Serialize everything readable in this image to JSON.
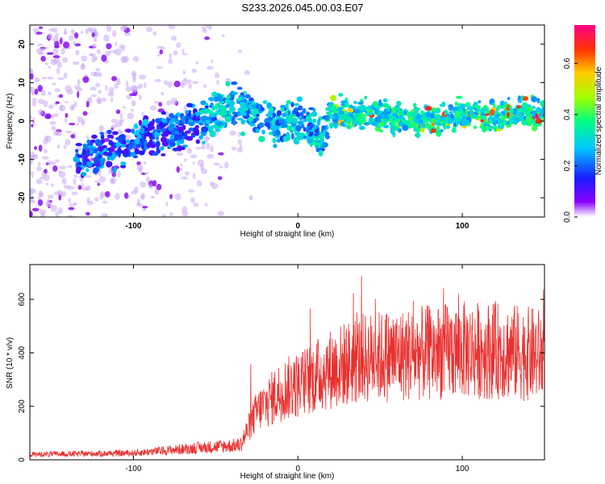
{
  "title": "S233.2026.045.00.03.E07",
  "colors": {
    "spectrogram_low": "#7b00ff",
    "snr_line": "#e8302e",
    "axis": "#000000"
  },
  "chart_data": [
    {
      "type": "heatmap",
      "xlabel": "Height of straight line (km)",
      "ylabel": "Frequency (Hz)",
      "xlim": [
        -163,
        150
      ],
      "ylim": [
        -25,
        25
      ],
      "xticks": [
        -100,
        0,
        100
      ],
      "yticks": [
        -20,
        -10,
        0,
        10,
        20
      ],
      "colorbar": {
        "label": "Normalized spectral amplitude",
        "range": [
          0.0,
          0.75
        ],
        "ticks": [
          0.0,
          0.2,
          0.4,
          0.6
        ],
        "colormap": "rainbow"
      },
      "ridge": [
        {
          "x": -130,
          "y": -10
        },
        {
          "x": -110,
          "y": -7
        },
        {
          "x": -90,
          "y": -4
        },
        {
          "x": -70,
          "y": -2
        },
        {
          "x": -55,
          "y": 1
        },
        {
          "x": -45,
          "y": 4
        },
        {
          "x": -35,
          "y": 4
        },
        {
          "x": -25,
          "y": 1
        },
        {
          "x": -10,
          "y": -1
        },
        {
          "x": 0,
          "y": 0
        },
        {
          "x": 10,
          "y": -3
        },
        {
          "x": 15,
          "y": -5
        },
        {
          "x": 20,
          "y": 2
        },
        {
          "x": 40,
          "y": 2
        },
        {
          "x": 60,
          "y": 1
        },
        {
          "x": 80,
          "y": 0
        },
        {
          "x": 100,
          "y": 2
        },
        {
          "x": 120,
          "y": 1
        },
        {
          "x": 140,
          "y": 2
        }
      ]
    },
    {
      "type": "line",
      "xlabel": "Height of straight line (km)",
      "ylabel": "SNR (10 * v/v)",
      "xlim": [
        -163,
        150
      ],
      "ylim": [
        0,
        730
      ],
      "xticks": [
        -100,
        0,
        100
      ],
      "yticks": [
        0,
        200,
        400,
        600
      ],
      "envelope": [
        {
          "x": -163,
          "y": 20
        },
        {
          "x": -100,
          "y": 25
        },
        {
          "x": -60,
          "y": 45
        },
        {
          "x": -35,
          "y": 55
        },
        {
          "x": -25,
          "y": 180
        },
        {
          "x": -10,
          "y": 260
        },
        {
          "x": 0,
          "y": 280
        },
        {
          "x": 20,
          "y": 340
        },
        {
          "x": 40,
          "y": 380
        },
        {
          "x": 60,
          "y": 390
        },
        {
          "x": 80,
          "y": 400
        },
        {
          "x": 100,
          "y": 410
        },
        {
          "x": 120,
          "y": 410
        },
        {
          "x": 150,
          "y": 390
        }
      ]
    }
  ]
}
